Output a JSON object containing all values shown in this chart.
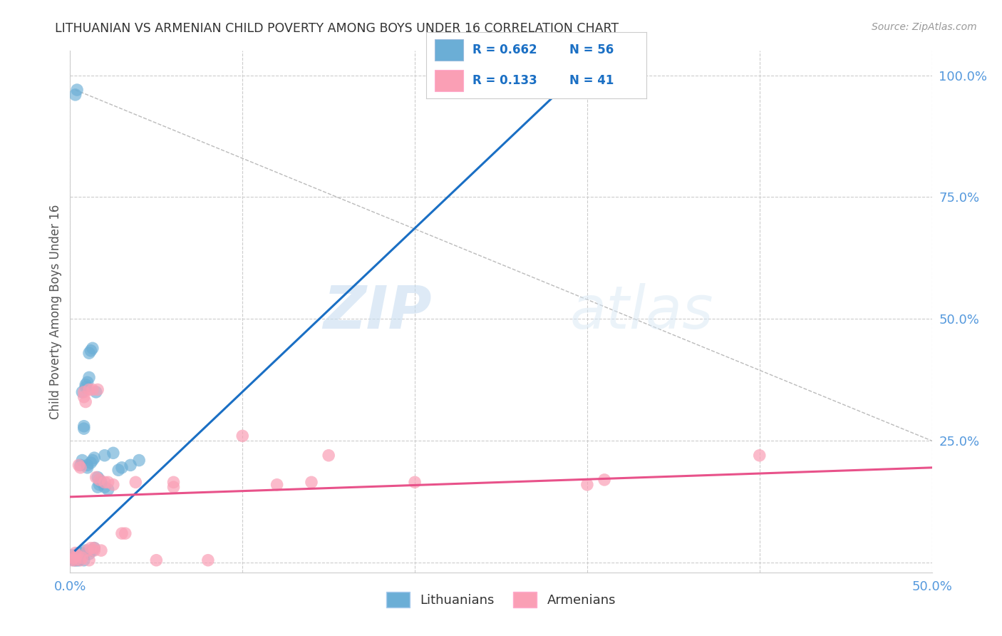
{
  "title": "LITHUANIAN VS ARMENIAN CHILD POVERTY AMONG BOYS UNDER 16 CORRELATION CHART",
  "source": "Source: ZipAtlas.com",
  "ylabel": "Child Poverty Among Boys Under 16",
  "xlim": [
    0.0,
    0.5
  ],
  "ylim": [
    -0.02,
    1.05
  ],
  "plot_ylim": [
    0.0,
    1.05
  ],
  "yticks_right": [
    0.0,
    0.25,
    0.5,
    0.75,
    1.0
  ],
  "blue_color": "#6baed6",
  "pink_color": "#fa9fb5",
  "blue_line_color": "#1a6fc4",
  "pink_line_color": "#e8528a",
  "watermark_color": "#ddeeff",
  "grid_color": "#cccccc",
  "title_color": "#333333",
  "axis_label_color": "#555555",
  "tick_color": "#5599dd",
  "source_color": "#999999",
  "background_color": "#ffffff",
  "legend_r_blue": "0.662",
  "legend_n_blue": "56",
  "legend_r_pink": "0.133",
  "legend_n_pink": "41",
  "blue_line_x": [
    0.003,
    0.295
  ],
  "blue_line_y": [
    0.025,
    1.005
  ],
  "pink_line_x": [
    0.0,
    0.5
  ],
  "pink_line_y": [
    0.135,
    0.195
  ],
  "diag_line_x": [
    0.003,
    0.5
  ],
  "diag_line_y": [
    0.97,
    0.25
  ],
  "blue_scatter": [
    [
      0.001,
      0.015
    ],
    [
      0.002,
      0.01
    ],
    [
      0.002,
      0.005
    ],
    [
      0.002,
      0.008
    ],
    [
      0.003,
      0.005
    ],
    [
      0.003,
      0.008
    ],
    [
      0.003,
      0.012
    ],
    [
      0.003,
      0.96
    ],
    [
      0.004,
      0.005
    ],
    [
      0.004,
      0.01
    ],
    [
      0.004,
      0.97
    ],
    [
      0.005,
      0.005
    ],
    [
      0.005,
      0.01
    ],
    [
      0.005,
      0.015
    ],
    [
      0.005,
      0.02
    ],
    [
      0.006,
      0.008
    ],
    [
      0.006,
      0.012
    ],
    [
      0.006,
      0.2
    ],
    [
      0.007,
      0.015
    ],
    [
      0.007,
      0.02
    ],
    [
      0.007,
      0.21
    ],
    [
      0.007,
      0.35
    ],
    [
      0.008,
      0.005
    ],
    [
      0.008,
      0.018
    ],
    [
      0.008,
      0.28
    ],
    [
      0.008,
      0.275
    ],
    [
      0.009,
      0.025
    ],
    [
      0.009,
      0.36
    ],
    [
      0.009,
      0.365
    ],
    [
      0.01,
      0.195
    ],
    [
      0.01,
      0.2
    ],
    [
      0.01,
      0.37
    ],
    [
      0.011,
      0.018
    ],
    [
      0.011,
      0.38
    ],
    [
      0.011,
      0.43
    ],
    [
      0.012,
      0.205
    ],
    [
      0.012,
      0.435
    ],
    [
      0.013,
      0.025
    ],
    [
      0.013,
      0.21
    ],
    [
      0.013,
      0.44
    ],
    [
      0.014,
      0.03
    ],
    [
      0.014,
      0.215
    ],
    [
      0.015,
      0.35
    ],
    [
      0.016,
      0.155
    ],
    [
      0.016,
      0.175
    ],
    [
      0.017,
      0.16
    ],
    [
      0.017,
      0.17
    ],
    [
      0.018,
      0.165
    ],
    [
      0.02,
      0.155
    ],
    [
      0.02,
      0.22
    ],
    [
      0.022,
      0.15
    ],
    [
      0.025,
      0.225
    ],
    [
      0.028,
      0.19
    ],
    [
      0.03,
      0.195
    ],
    [
      0.035,
      0.2
    ],
    [
      0.04,
      0.21
    ]
  ],
  "pink_scatter": [
    [
      0.001,
      0.005
    ],
    [
      0.002,
      0.01
    ],
    [
      0.003,
      0.005
    ],
    [
      0.003,
      0.02
    ],
    [
      0.004,
      0.015
    ],
    [
      0.005,
      0.2
    ],
    [
      0.006,
      0.195
    ],
    [
      0.006,
      0.005
    ],
    [
      0.007,
      0.01
    ],
    [
      0.008,
      0.34
    ],
    [
      0.008,
      0.35
    ],
    [
      0.009,
      0.33
    ],
    [
      0.01,
      0.025
    ],
    [
      0.011,
      0.355
    ],
    [
      0.011,
      0.005
    ],
    [
      0.012,
      0.03
    ],
    [
      0.013,
      0.355
    ],
    [
      0.014,
      0.025
    ],
    [
      0.014,
      0.03
    ],
    [
      0.015,
      0.175
    ],
    [
      0.016,
      0.355
    ],
    [
      0.017,
      0.17
    ],
    [
      0.018,
      0.025
    ],
    [
      0.02,
      0.165
    ],
    [
      0.022,
      0.165
    ],
    [
      0.025,
      0.16
    ],
    [
      0.03,
      0.06
    ],
    [
      0.032,
      0.06
    ],
    [
      0.038,
      0.165
    ],
    [
      0.05,
      0.005
    ],
    [
      0.06,
      0.155
    ],
    [
      0.06,
      0.165
    ],
    [
      0.08,
      0.005
    ],
    [
      0.1,
      0.26
    ],
    [
      0.12,
      0.16
    ],
    [
      0.14,
      0.165
    ],
    [
      0.15,
      0.22
    ],
    [
      0.2,
      0.165
    ],
    [
      0.3,
      0.16
    ],
    [
      0.31,
      0.17
    ],
    [
      0.4,
      0.22
    ]
  ]
}
